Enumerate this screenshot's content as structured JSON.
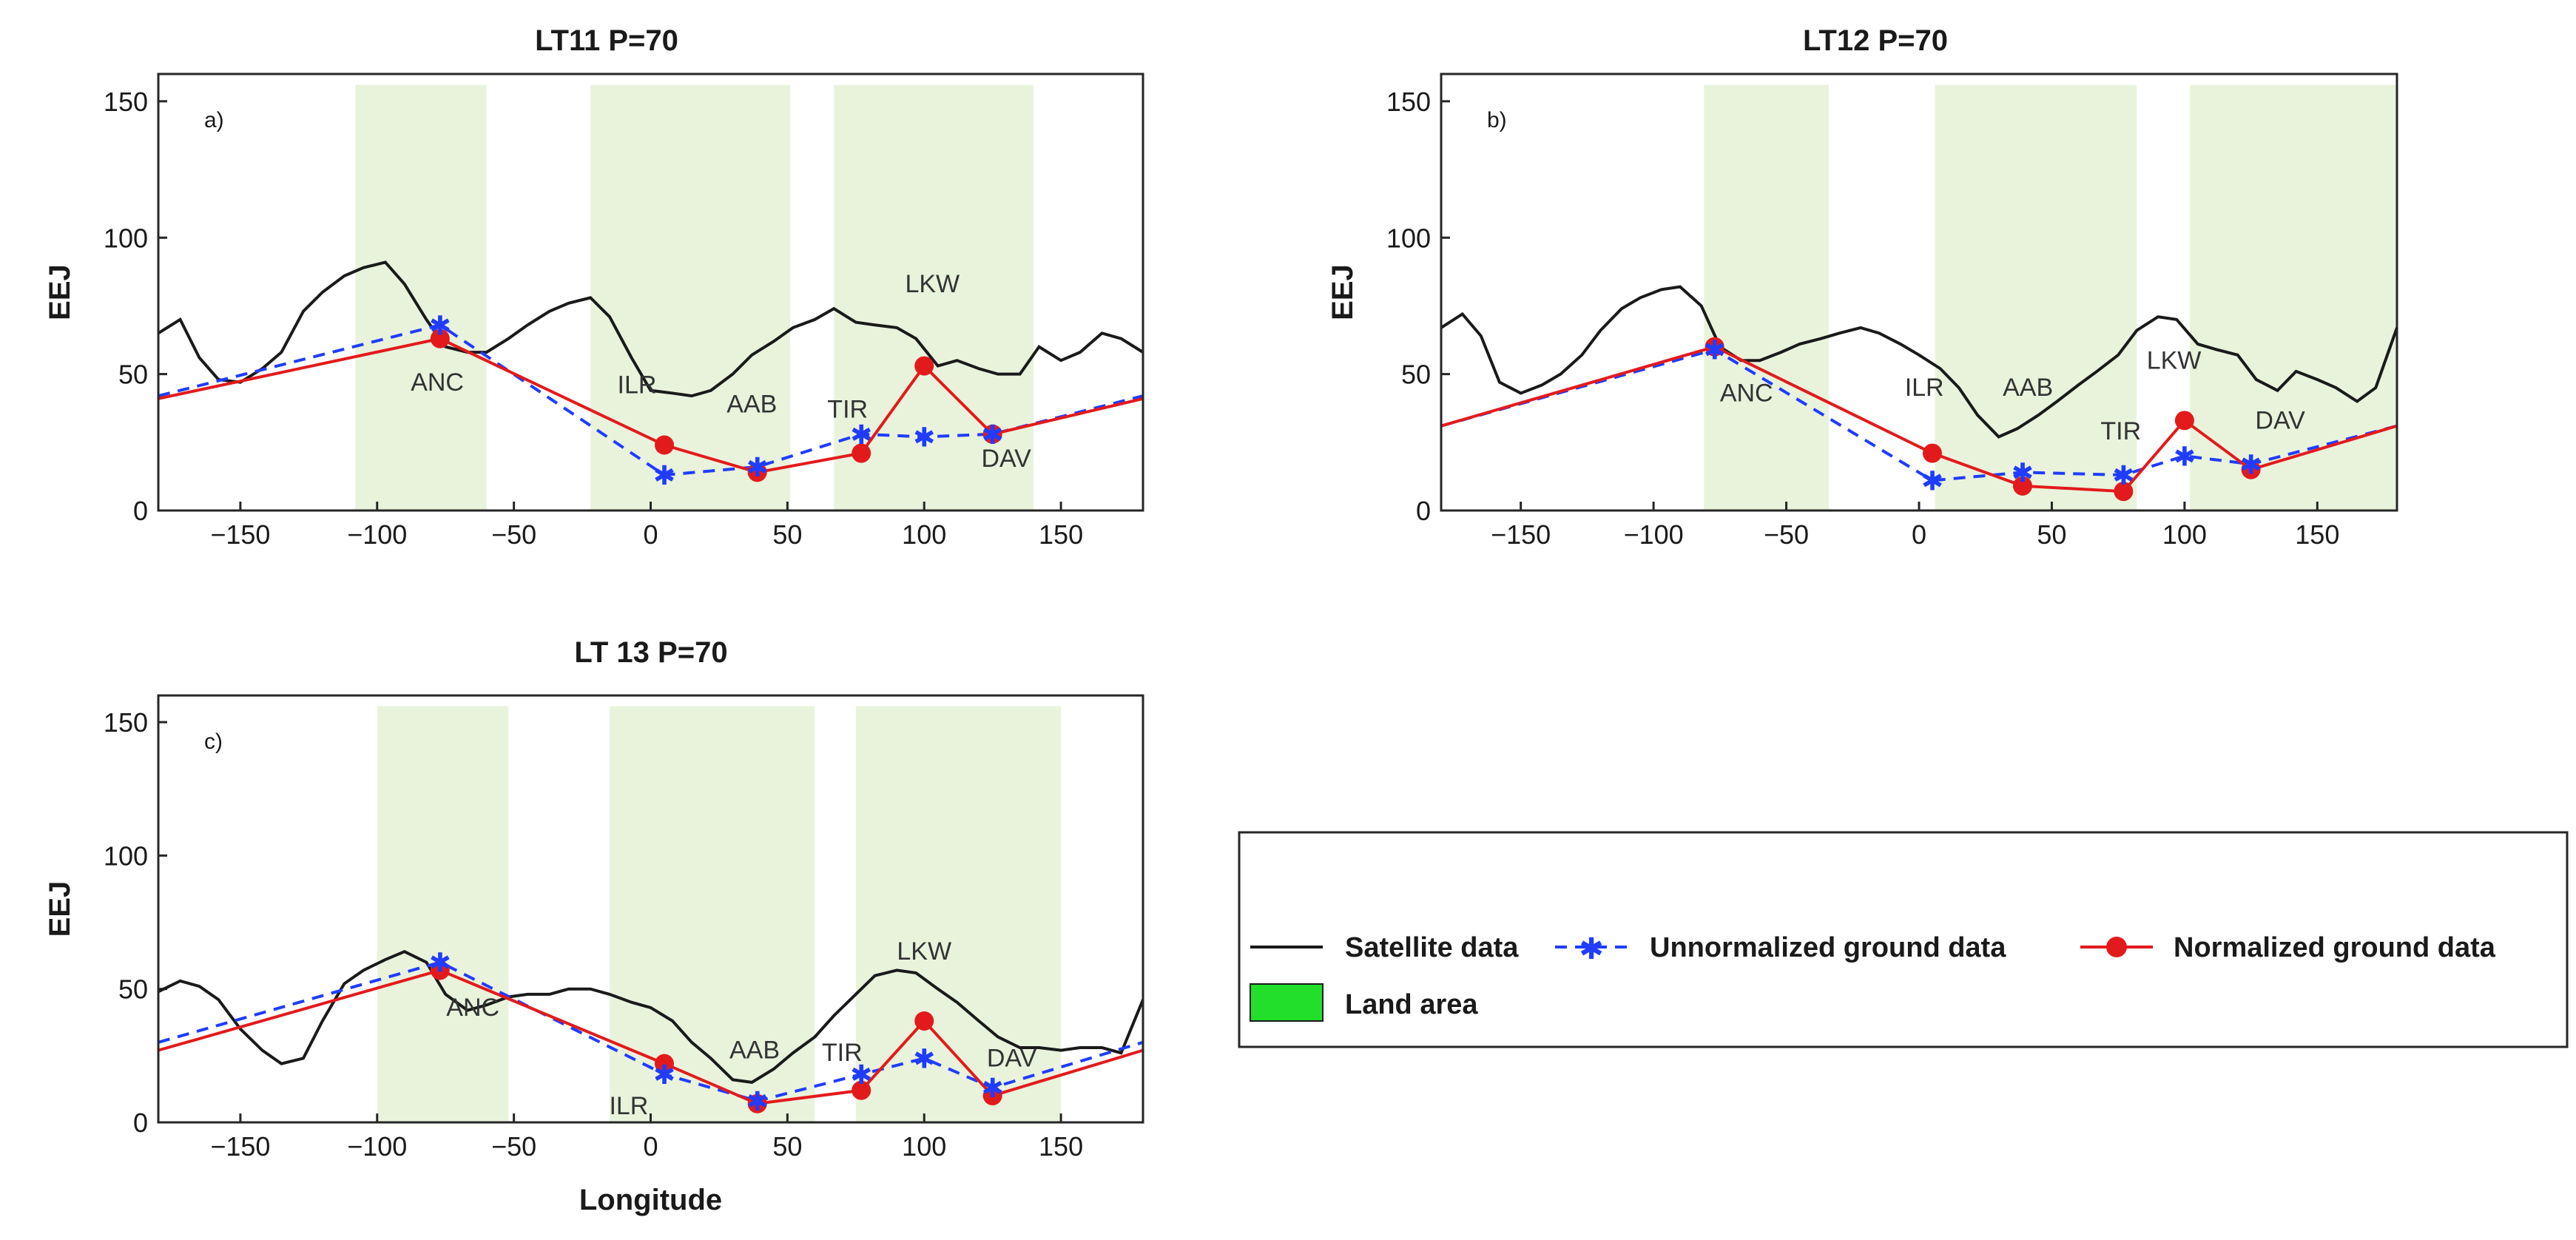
{
  "colors": {
    "satellite": "#1a1a1a",
    "unnormalized": "#1f3cff",
    "normalized": "#e31a1c",
    "land_band": "#e9f3dc",
    "land_legend": "#22e02a"
  },
  "legend": {
    "satellite": "Satellite data",
    "unnormalized": "Unnormalized ground data",
    "normalized": "Normalized ground data",
    "land": "Land area"
  },
  "chart_data": [
    {
      "type": "line",
      "title": "LT11 P=70",
      "panel_label": "a)",
      "xlabel": "",
      "ylabel": "EEJ",
      "xlim": [
        -180,
        180
      ],
      "ylim": [
        0,
        160
      ],
      "xticks": [
        -150,
        -100,
        -50,
        0,
        50,
        100,
        150
      ],
      "yticks": [
        0,
        50,
        100,
        150
      ],
      "land_bands": [
        [
          -108,
          -60
        ],
        [
          -22,
          51
        ],
        [
          67,
          140
        ]
      ],
      "satellite": {
        "x": [
          -180,
          -172,
          -165,
          -158,
          -150,
          -142,
          -135,
          -127,
          -120,
          -112,
          -105,
          -97,
          -90,
          -82,
          -75,
          -67,
          -60,
          -52,
          -45,
          -37,
          -30,
          -22,
          -15,
          -7,
          0,
          8,
          15,
          22,
          30,
          37,
          45,
          52,
          60,
          67,
          75,
          82,
          90,
          97,
          105,
          112,
          120,
          127,
          135,
          142,
          150,
          157,
          165,
          172,
          180
        ],
        "y": [
          65,
          70,
          56,
          48,
          47,
          52,
          58,
          73,
          80,
          86,
          89,
          91,
          83,
          70,
          60,
          58,
          58,
          63,
          68,
          73,
          76,
          78,
          71,
          56,
          44,
          43,
          42,
          44,
          50,
          57,
          62,
          67,
          70,
          74,
          69,
          68,
          67,
          63,
          53,
          55,
          52,
          50,
          50,
          60,
          55,
          58,
          65,
          63,
          58
        ]
      },
      "stations": [
        {
          "name": "ANC",
          "lon": -77,
          "unnormalized": 68,
          "normalized": 63
        },
        {
          "name": "ILR",
          "lon": 5,
          "unnormalized": 13,
          "normalized": 24
        },
        {
          "name": "AAB",
          "lon": 39,
          "unnormalized": 16,
          "normalized": 14
        },
        {
          "name": "TIR",
          "lon": 77,
          "unnormalized": 28,
          "normalized": 21
        },
        {
          "name": "LKW",
          "lon": 100,
          "unnormalized": 27,
          "normalized": 53
        },
        {
          "name": "DAV",
          "lon": 125,
          "unnormalized": 28,
          "normalized": 28
        }
      ],
      "wrap": {
        "unnormalized": 42,
        "normalized": 41
      },
      "station_labels": [
        {
          "name": "ANC",
          "x": -78,
          "y": 44
        },
        {
          "name": "ILR",
          "x": -5,
          "y": 43
        },
        {
          "name": "AAB",
          "x": 37,
          "y": 36
        },
        {
          "name": "TIR",
          "x": 72,
          "y": 34
        },
        {
          "name": "LKW",
          "x": 103,
          "y": 80
        },
        {
          "name": "DAV",
          "x": 130,
          "y": 16
        }
      ]
    },
    {
      "type": "line",
      "title": "LT12 P=70",
      "panel_label": "b)",
      "xlabel": "",
      "ylabel": "EEJ",
      "xlim": [
        -180,
        180
      ],
      "ylim": [
        0,
        160
      ],
      "xticks": [
        -150,
        -100,
        -50,
        0,
        50,
        100,
        150
      ],
      "yticks": [
        0,
        50,
        100,
        150
      ],
      "land_bands": [
        [
          -81,
          -34
        ],
        [
          6,
          82
        ],
        [
          102,
          180
        ]
      ],
      "satellite": {
        "x": [
          -180,
          -172,
          -165,
          -158,
          -150,
          -142,
          -135,
          -127,
          -120,
          -112,
          -105,
          -97,
          -90,
          -82,
          -75,
          -67,
          -60,
          -52,
          -45,
          -37,
          -30,
          -22,
          -15,
          -7,
          0,
          8,
          15,
          22,
          30,
          37,
          45,
          52,
          60,
          67,
          75,
          82,
          90,
          97,
          105,
          112,
          120,
          127,
          135,
          142,
          150,
          157,
          165,
          172,
          180
        ],
        "y": [
          67,
          72,
          64,
          47,
          43,
          46,
          50,
          57,
          66,
          74,
          78,
          81,
          82,
          75,
          60,
          55,
          55,
          58,
          61,
          63,
          65,
          67,
          65,
          61,
          57,
          52,
          45,
          35,
          27,
          30,
          35,
          40,
          46,
          51,
          57,
          66,
          71,
          70,
          61,
          59,
          57,
          48,
          44,
          51,
          48,
          45,
          40,
          45,
          67
        ]
      },
      "stations": [
        {
          "name": "ANC",
          "lon": -77,
          "unnormalized": 59,
          "normalized": 60
        },
        {
          "name": "ILR",
          "lon": 5,
          "unnormalized": 11,
          "normalized": 21
        },
        {
          "name": "AAB",
          "lon": 39,
          "unnormalized": 14,
          "normalized": 9
        },
        {
          "name": "TIR",
          "lon": 77,
          "unnormalized": 13,
          "normalized": 7
        },
        {
          "name": "LKW",
          "lon": 100,
          "unnormalized": 20,
          "normalized": 33
        },
        {
          "name": "DAV",
          "lon": 125,
          "unnormalized": 17,
          "normalized": 15
        }
      ],
      "wrap": {
        "unnormalized": 31,
        "normalized": 31
      },
      "station_labels": [
        {
          "name": "ANC",
          "x": -65,
          "y": 40
        },
        {
          "name": "ILR",
          "x": 2,
          "y": 42
        },
        {
          "name": "AAB",
          "x": 41,
          "y": 42
        },
        {
          "name": "TIR",
          "x": 76,
          "y": 26
        },
        {
          "name": "LKW",
          "x": 96,
          "y": 52
        },
        {
          "name": "DAV",
          "x": 136,
          "y": 30
        }
      ]
    },
    {
      "type": "line",
      "title": "LT 13 P=70",
      "panel_label": "c)",
      "xlabel": "Longitude",
      "ylabel": "EEJ",
      "xlim": [
        -180,
        180
      ],
      "ylim": [
        0,
        160
      ],
      "xticks": [
        -150,
        -100,
        -50,
        0,
        50,
        100,
        150
      ],
      "yticks": [
        0,
        50,
        100,
        150
      ],
      "land_bands": [
        [
          -100,
          -52
        ],
        [
          -15,
          60
        ],
        [
          75,
          150
        ]
      ],
      "satellite": {
        "x": [
          -180,
          -172,
          -165,
          -158,
          -150,
          -142,
          -135,
          -127,
          -120,
          -112,
          -105,
          -97,
          -90,
          -82,
          -75,
          -67,
          -60,
          -52,
          -45,
          -37,
          -30,
          -22,
          -15,
          -7,
          0,
          8,
          15,
          22,
          30,
          37,
          45,
          52,
          60,
          67,
          75,
          82,
          90,
          97,
          105,
          112,
          120,
          127,
          135,
          142,
          150,
          157,
          165,
          172,
          180
        ],
        "y": [
          49,
          53,
          51,
          46,
          35,
          27,
          22,
          24,
          38,
          52,
          57,
          61,
          64,
          60,
          48,
          42,
          44,
          47,
          48,
          48,
          50,
          50,
          48,
          45,
          43,
          38,
          30,
          24,
          16,
          15,
          20,
          26,
          32,
          40,
          48,
          55,
          57,
          56,
          50,
          45,
          38,
          32,
          28,
          28,
          27,
          28,
          28,
          26,
          46
        ]
      },
      "stations": [
        {
          "name": "ANC",
          "lon": -77,
          "unnormalized": 60,
          "normalized": 57
        },
        {
          "name": "ILR",
          "lon": 5,
          "unnormalized": 18,
          "normalized": 22
        },
        {
          "name": "AAB",
          "lon": 39,
          "unnormalized": 8,
          "normalized": 7
        },
        {
          "name": "TIR",
          "lon": 77,
          "unnormalized": 18,
          "normalized": 12
        },
        {
          "name": "LKW",
          "lon": 100,
          "unnormalized": 24,
          "normalized": 38
        },
        {
          "name": "DAV",
          "lon": 125,
          "unnormalized": 13,
          "normalized": 10
        }
      ],
      "wrap": {
        "unnormalized": 30,
        "normalized": 27
      },
      "station_labels": [
        {
          "name": "ANC",
          "x": -65,
          "y": 40
        },
        {
          "name": "ILR",
          "x": -8,
          "y": 3
        },
        {
          "name": "AAB",
          "x": 38,
          "y": 24
        },
        {
          "name": "TIR",
          "x": 70,
          "y": 23
        },
        {
          "name": "LKW",
          "x": 100,
          "y": 61
        },
        {
          "name": "DAV",
          "x": 132,
          "y": 21
        }
      ]
    }
  ]
}
